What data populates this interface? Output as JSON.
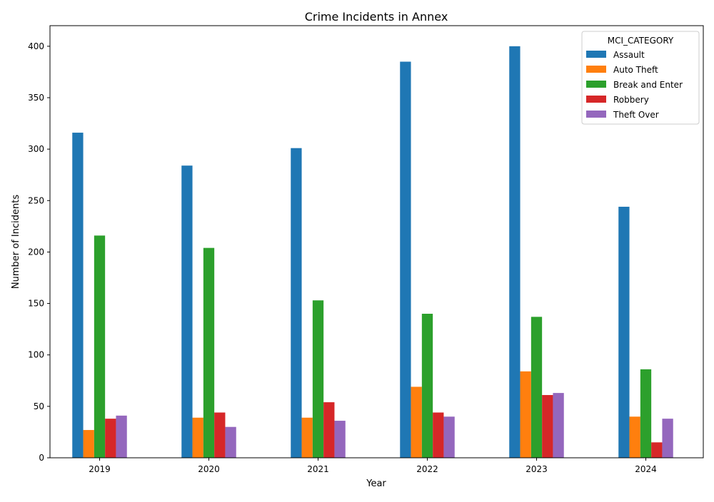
{
  "chart_data": {
    "type": "bar",
    "title": "Crime Incidents in Annex",
    "xlabel": "Year",
    "ylabel": "Number of Incidents",
    "categories": [
      "2019",
      "2020",
      "2021",
      "2022",
      "2023",
      "2024"
    ],
    "ylim": [
      0,
      420
    ],
    "yticks": [
      0,
      50,
      100,
      150,
      200,
      250,
      300,
      350,
      400
    ],
    "grid": false,
    "legend": {
      "title": "MCI_CATEGORY",
      "placement": "top-right"
    },
    "series": [
      {
        "name": "Assault",
        "color": "#1f77b4",
        "values": [
          316,
          284,
          301,
          385,
          400,
          244
        ]
      },
      {
        "name": "Auto Theft",
        "color": "#ff7f0e",
        "values": [
          27,
          39,
          39,
          69,
          84,
          40
        ]
      },
      {
        "name": "Break and Enter",
        "color": "#2ca02c",
        "values": [
          216,
          204,
          153,
          140,
          137,
          86
        ]
      },
      {
        "name": "Robbery",
        "color": "#d62728",
        "values": [
          38,
          44,
          54,
          44,
          61,
          15
        ]
      },
      {
        "name": "Theft Over",
        "color": "#9467bd",
        "values": [
          41,
          30,
          36,
          40,
          63,
          38
        ]
      }
    ]
  }
}
